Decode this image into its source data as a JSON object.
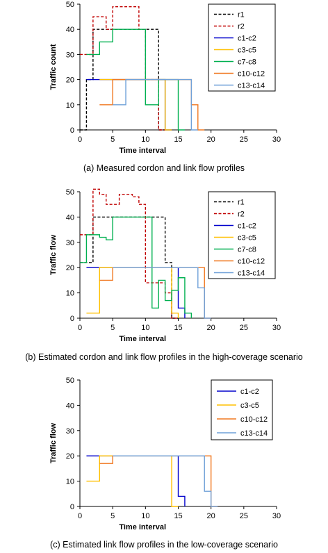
{
  "chart_data": [
    {
      "type": "line",
      "step": true,
      "caption": "(a) Measured cordon and link flow profiles",
      "xlabel": "Time interval",
      "ylabel": "Traffic count",
      "xlim": [
        0,
        30
      ],
      "ylim": [
        0,
        50
      ],
      "xticks": [
        0,
        5,
        10,
        15,
        20,
        25,
        30
      ],
      "yticks": [
        0,
        10,
        20,
        30,
        40,
        50
      ],
      "legend_position": "top-right",
      "series": [
        {
          "name": "r1",
          "color": "#000000",
          "dash": true,
          "x": [
            0,
            1,
            2,
            3,
            4,
            5,
            6,
            7,
            8,
            9,
            10,
            11,
            12,
            13
          ],
          "y": [
            0,
            20,
            40,
            40,
            40,
            40,
            40,
            40,
            40,
            40,
            40,
            40,
            0,
            0
          ]
        },
        {
          "name": "r2",
          "color": "#c00000",
          "dash": true,
          "x": [
            0,
            1,
            2,
            3,
            4,
            5,
            6,
            7,
            8,
            9,
            10,
            11,
            12,
            13
          ],
          "y": [
            30,
            30,
            45,
            45,
            40,
            49,
            49,
            49,
            49,
            40,
            20,
            20,
            0,
            0
          ]
        },
        {
          "name": "c1-c2",
          "color": "#0000cc",
          "dash": false,
          "x": [
            1,
            2,
            3,
            4,
            5,
            6,
            7,
            8,
            9,
            10,
            11,
            12,
            13,
            14
          ],
          "y": [
            20,
            20,
            20,
            20,
            20,
            20,
            20,
            20,
            20,
            20,
            20,
            20,
            0,
            0
          ]
        },
        {
          "name": "c3-c5",
          "color": "#ffc000",
          "dash": false,
          "x": [
            3,
            4,
            5,
            6,
            7,
            8,
            9,
            10,
            11,
            12,
            13,
            14
          ],
          "y": [
            20,
            20,
            20,
            20,
            20,
            20,
            20,
            20,
            20,
            20,
            0,
            0
          ]
        },
        {
          "name": "c7-c8",
          "color": "#00b050",
          "dash": false,
          "x": [
            1,
            2,
            3,
            4,
            5,
            6,
            7,
            8,
            9,
            10,
            11,
            12,
            13,
            14,
            15,
            16
          ],
          "y": [
            30,
            30,
            35,
            35,
            40,
            40,
            40,
            40,
            40,
            10,
            10,
            20,
            20,
            20,
            0,
            0
          ]
        },
        {
          "name": "c10-c12",
          "color": "#f07820",
          "dash": false,
          "x": [
            3,
            4,
            5,
            6,
            7,
            8,
            9,
            10,
            11,
            12,
            13,
            14,
            15,
            16,
            17,
            18,
            19
          ],
          "y": [
            10,
            10,
            20,
            20,
            20,
            20,
            20,
            20,
            20,
            20,
            20,
            20,
            20,
            20,
            10,
            0,
            0
          ]
        },
        {
          "name": "c13-c14",
          "color": "#6fa0d8",
          "dash": false,
          "x": [
            5,
            6,
            7,
            8,
            9,
            10,
            11,
            12,
            13,
            14,
            15,
            16,
            17,
            18
          ],
          "y": [
            10,
            10,
            20,
            20,
            20,
            20,
            20,
            20,
            20,
            20,
            20,
            20,
            0,
            0
          ]
        }
      ]
    },
    {
      "type": "line",
      "step": true,
      "caption": "(b) Estimated cordon and link flow profiles in the high-coverage scenario",
      "xlabel": "Time interval",
      "ylabel": "Traffic flow",
      "xlim": [
        0,
        30
      ],
      "ylim": [
        0,
        50
      ],
      "xticks": [
        0,
        5,
        10,
        15,
        20,
        25,
        30
      ],
      "yticks": [
        0,
        10,
        20,
        30,
        40,
        50
      ],
      "legend_position": "top-right",
      "series": [
        {
          "name": "r1",
          "color": "#000000",
          "dash": true,
          "x": [
            0,
            1,
            2,
            3,
            4,
            5,
            6,
            7,
            8,
            9,
            10,
            11,
            12,
            13,
            14,
            15
          ],
          "y": [
            22,
            22,
            40,
            40,
            40,
            40,
            40,
            40,
            40,
            40,
            40,
            40,
            40,
            22,
            0,
            0
          ]
        },
        {
          "name": "r2",
          "color": "#c00000",
          "dash": true,
          "x": [
            0,
            1,
            2,
            3,
            4,
            5,
            6,
            7,
            8,
            9,
            10,
            11,
            12,
            13,
            14,
            15
          ],
          "y": [
            33,
            33,
            51,
            49,
            45,
            45,
            49,
            49,
            48,
            45,
            14,
            14,
            14,
            10,
            0,
            0
          ]
        },
        {
          "name": "c1-c2",
          "color": "#0000cc",
          "dash": false,
          "x": [
            1,
            2,
            3,
            4,
            5,
            6,
            7,
            8,
            9,
            10,
            11,
            12,
            13,
            14,
            15,
            16
          ],
          "y": [
            20,
            20,
            20,
            20,
            20,
            20,
            20,
            20,
            20,
            20,
            20,
            20,
            20,
            20,
            4,
            0
          ]
        },
        {
          "name": "c3-c5",
          "color": "#ffc000",
          "dash": false,
          "x": [
            1,
            2,
            3,
            4,
            5,
            6,
            7,
            8,
            9,
            10,
            11,
            12,
            13,
            14,
            15
          ],
          "y": [
            2,
            2,
            20,
            20,
            20,
            20,
            20,
            20,
            20,
            20,
            20,
            20,
            20,
            2,
            0
          ]
        },
        {
          "name": "c7-c8",
          "color": "#00b050",
          "dash": false,
          "x": [
            0,
            1,
            2,
            3,
            4,
            5,
            6,
            7,
            8,
            9,
            10,
            11,
            12,
            13,
            14,
            15,
            16,
            17
          ],
          "y": [
            22,
            33,
            33,
            32,
            31,
            40,
            40,
            40,
            40,
            40,
            40,
            4,
            15,
            7,
            11,
            16,
            2,
            0
          ]
        },
        {
          "name": "c10-c12",
          "color": "#f07820",
          "dash": false,
          "x": [
            3,
            4,
            5,
            6,
            7,
            8,
            9,
            10,
            11,
            12,
            13,
            14,
            15,
            16,
            17,
            18,
            19,
            20
          ],
          "y": [
            15,
            15,
            20,
            20,
            20,
            20,
            20,
            20,
            20,
            20,
            20,
            20,
            20,
            20,
            20,
            20,
            0,
            0
          ]
        },
        {
          "name": "c13-c14",
          "color": "#6fa0d8",
          "dash": false,
          "x": [
            5,
            6,
            7,
            8,
            9,
            10,
            11,
            12,
            13,
            14,
            15,
            16,
            17,
            18,
            19,
            20
          ],
          "y": [
            20,
            20,
            20,
            20,
            20,
            20,
            20,
            20,
            20,
            20,
            20,
            20,
            20,
            12,
            0,
            0
          ]
        }
      ]
    },
    {
      "type": "line",
      "step": true,
      "caption": "(c) Estimated link flow profiles in the low-coverage scenario",
      "xlabel": "Time interval",
      "ylabel": "Traffic flow",
      "xlim": [
        0,
        30
      ],
      "ylim": [
        0,
        50
      ],
      "xticks": [
        0,
        5,
        10,
        15,
        20,
        25,
        30
      ],
      "yticks": [
        0,
        10,
        20,
        30,
        40,
        50
      ],
      "legend_position": "top-right",
      "series": [
        {
          "name": "c1-c2",
          "color": "#0000cc",
          "dash": false,
          "x": [
            1,
            2,
            3,
            4,
            5,
            6,
            7,
            8,
            9,
            10,
            11,
            12,
            13,
            14,
            15,
            16
          ],
          "y": [
            20,
            20,
            20,
            20,
            20,
            20,
            20,
            20,
            20,
            20,
            20,
            20,
            20,
            20,
            4,
            0
          ]
        },
        {
          "name": "c3-c5",
          "color": "#ffc000",
          "dash": false,
          "x": [
            1,
            2,
            3,
            4,
            5,
            6,
            7,
            8,
            9,
            10,
            11,
            12,
            13,
            14,
            15
          ],
          "y": [
            10,
            10,
            20,
            20,
            20,
            20,
            20,
            20,
            20,
            20,
            20,
            20,
            20,
            0,
            0
          ]
        },
        {
          "name": "c10-c12",
          "color": "#f07820",
          "dash": false,
          "x": [
            3,
            4,
            5,
            6,
            7,
            8,
            9,
            10,
            11,
            12,
            13,
            14,
            15,
            16,
            17,
            18,
            19,
            20,
            21
          ],
          "y": [
            17,
            17,
            20,
            20,
            20,
            20,
            20,
            20,
            20,
            20,
            20,
            20,
            20,
            20,
            20,
            20,
            20,
            0,
            0
          ]
        },
        {
          "name": "c13-c14",
          "color": "#6fa0d8",
          "dash": false,
          "x": [
            5,
            6,
            7,
            8,
            9,
            10,
            11,
            12,
            13,
            14,
            15,
            16,
            17,
            18,
            19,
            20,
            21
          ],
          "y": [
            20,
            20,
            20,
            20,
            20,
            20,
            20,
            20,
            20,
            20,
            20,
            20,
            20,
            20,
            6,
            0,
            0
          ]
        }
      ]
    }
  ]
}
